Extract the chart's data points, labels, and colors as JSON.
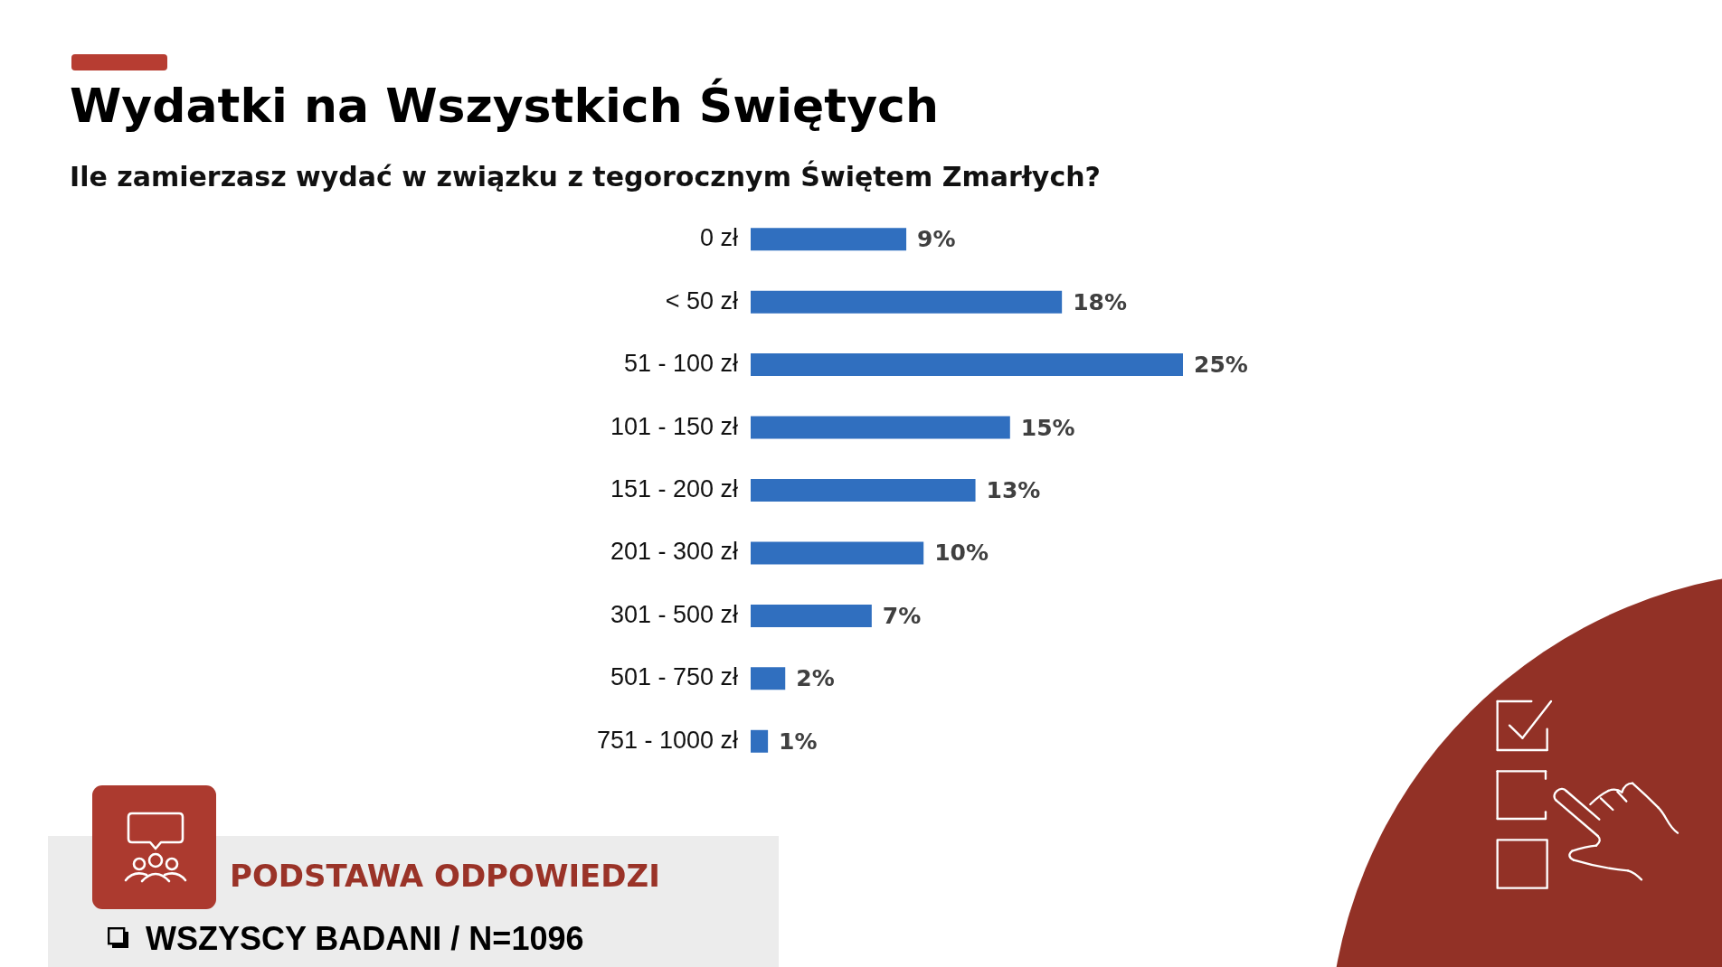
{
  "chart_data": {
    "type": "bar",
    "orientation": "horizontal",
    "title": "Wydatki na Wszystkich Świętych",
    "subtitle": "Ile zamierzasz wydać w związku z tegorocznym Świętem Zmarłych?",
    "categories": [
      "0 zł",
      "< 50 zł",
      "51 - 100 zł",
      "101 - 150 zł",
      "151 - 200 zł",
      "201 - 300 zł",
      "301 - 500 zł",
      "501 - 750 zł",
      "751 - 1000 zł"
    ],
    "values": [
      9,
      18,
      25,
      15,
      13,
      10,
      7,
      2,
      1
    ],
    "value_labels": [
      "9%",
      "18%",
      "25%",
      "15%",
      "13%",
      "10%",
      "7%",
      "2%",
      "1%"
    ],
    "color": "#306fbf",
    "annotations": [
      "PODSTAWA ODPOWIEDZI",
      "WSZYSCY BADANI / N=1096"
    ]
  }
}
